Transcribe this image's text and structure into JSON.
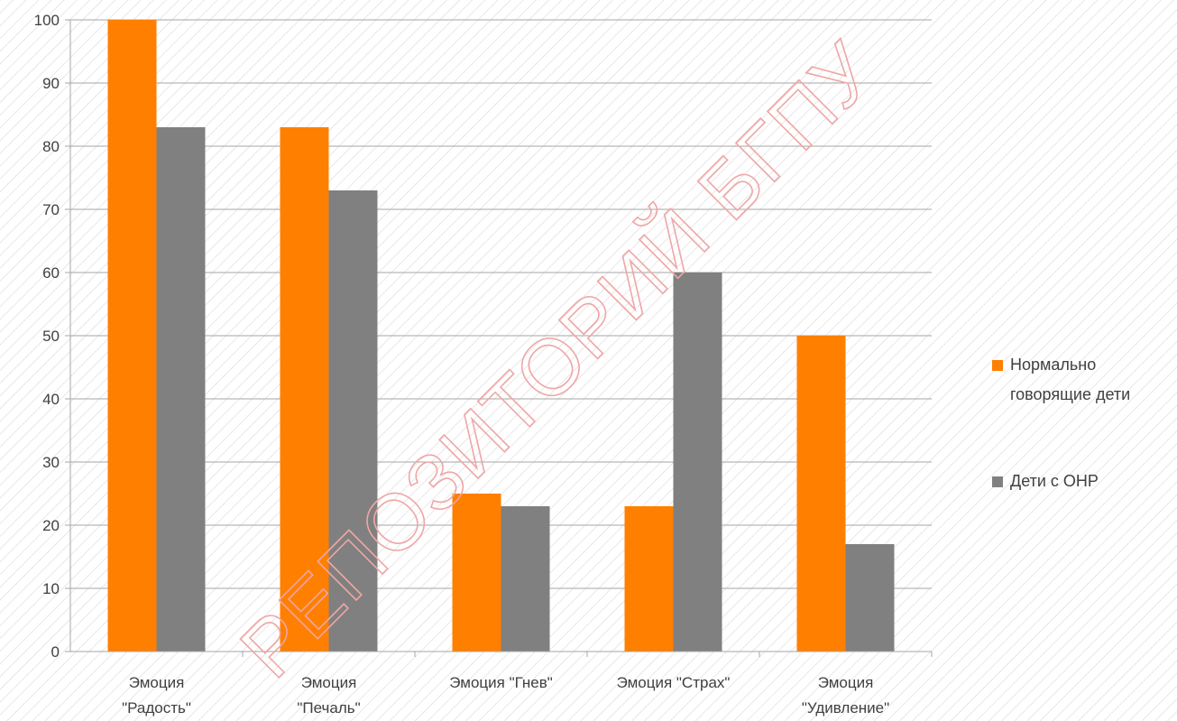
{
  "chart_data": {
    "type": "bar",
    "categories": [
      [
        "Эмоция",
        "\"Радость\""
      ],
      [
        "Эмоция",
        "\"Печаль\""
      ],
      [
        "Эмоция \"Гнев\""
      ],
      [
        "Эмоция \"Страх\""
      ],
      [
        "Эмоция",
        "\"Удивление\""
      ]
    ],
    "series": [
      {
        "name": [
          "Нормально",
          "говорящие дети"
        ],
        "color": "#FF7F00",
        "values": [
          100,
          83,
          25,
          23,
          50
        ]
      },
      {
        "name": [
          "Дети с ОНР"
        ],
        "color": "#808080",
        "values": [
          83,
          73,
          23,
          60,
          17
        ]
      }
    ],
    "ylim": [
      0,
      100
    ],
    "yticks": [
      0,
      10,
      20,
      30,
      40,
      50,
      60,
      70,
      80,
      90,
      100
    ],
    "grid": true,
    "legend_position": "right",
    "background_pattern": "diagonal-hatch"
  },
  "watermark": {
    "text": "РЕПОЗИТОРИЙ БГПУ"
  }
}
